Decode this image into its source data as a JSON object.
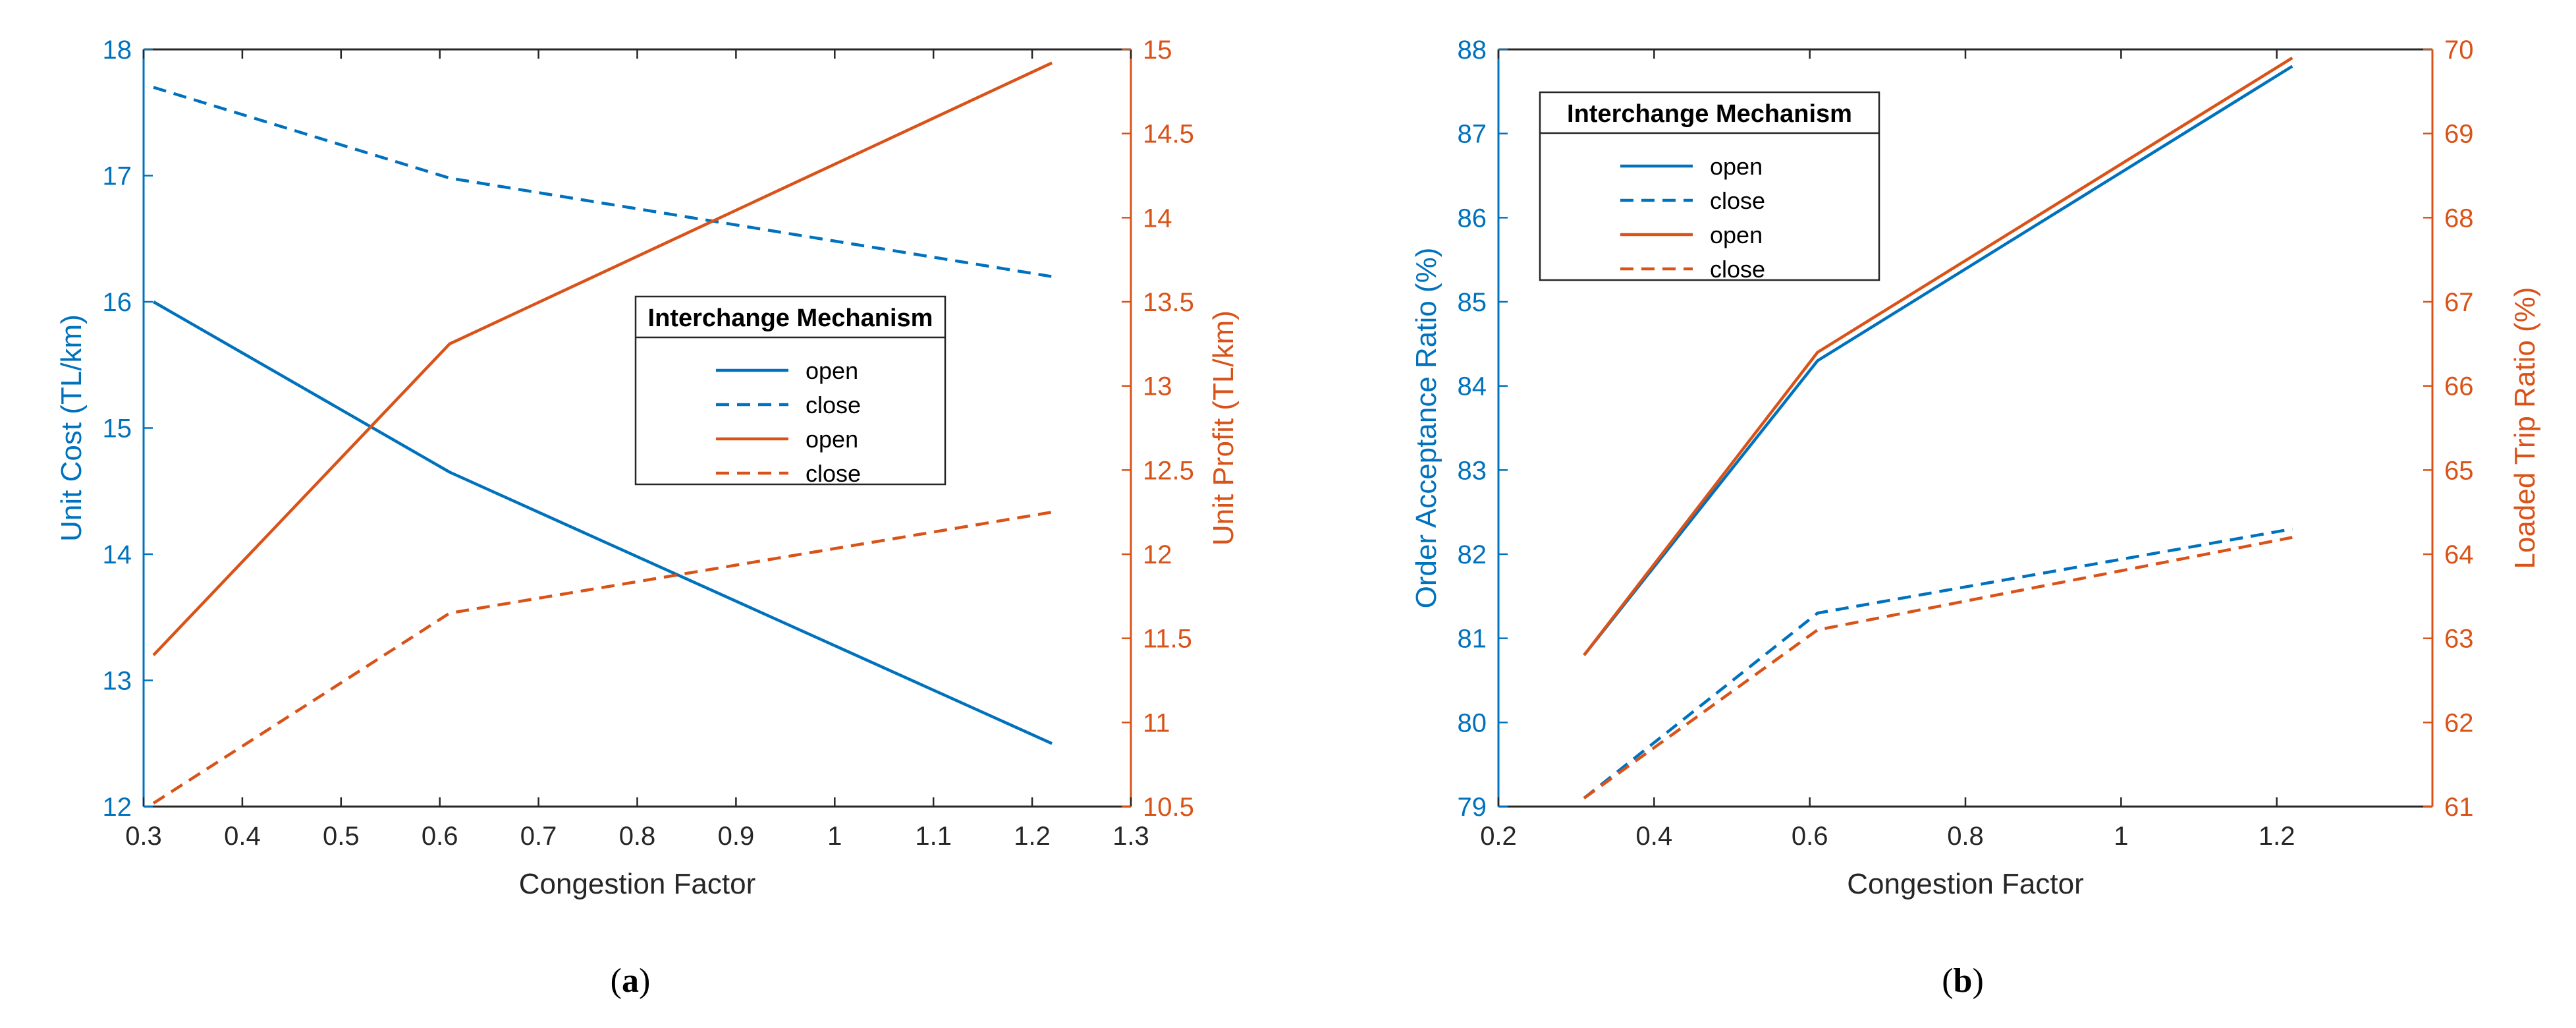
{
  "colors": {
    "left": "#0072BD",
    "right": "#D95319",
    "axis": "#262626",
    "legend_border": "#262626"
  },
  "chart_data": [
    {
      "id": "a",
      "caption_letter": "a",
      "type": "line",
      "xlabel": "Congestion Factor",
      "ylabel_left": "Unit Cost (TL/km)",
      "ylabel_right": "Unit Profit (TL/km)",
      "xlim": [
        0.3,
        1.3
      ],
      "xticks": [
        0.3,
        0.4,
        0.5,
        0.6,
        0.7,
        0.8,
        0.9,
        1,
        1.1,
        1.2,
        1.3
      ],
      "xtick_labels": [
        "0.3",
        "0.4",
        "0.5",
        "0.6",
        "0.7",
        "0.8",
        "0.9",
        "1",
        "1.1",
        "1.2",
        "1.3"
      ],
      "ylim_left": [
        12,
        18
      ],
      "yticks_left": [
        12,
        13,
        14,
        15,
        16,
        17,
        18
      ],
      "ytick_labels_left": [
        "12",
        "13",
        "14",
        "15",
        "16",
        "17",
        "18"
      ],
      "ylim_right": [
        10.5,
        15
      ],
      "yticks_right": [
        10.5,
        11,
        11.5,
        12,
        12.5,
        13,
        13.5,
        14,
        14.5,
        15
      ],
      "ytick_labels_right": [
        "10.5",
        "11",
        "11.5",
        "12",
        "12.5",
        "13",
        "13.5",
        "14",
        "14.5",
        "15"
      ],
      "legend_title": "Interchange Mechanism",
      "legend_position": "center-right",
      "series": [
        {
          "name": "open",
          "axis": "left",
          "style": "solid",
          "x": [
            0.31,
            0.61,
            1.22
          ],
          "y": [
            16.0,
            14.65,
            12.5
          ]
        },
        {
          "name": "close",
          "axis": "left",
          "style": "dashed",
          "x": [
            0.31,
            0.61,
            1.22
          ],
          "y": [
            17.7,
            16.98,
            16.2
          ]
        },
        {
          "name": "open",
          "axis": "right",
          "style": "solid",
          "x": [
            0.31,
            0.61,
            1.22
          ],
          "y": [
            11.4,
            13.25,
            14.92
          ]
        },
        {
          "name": "close",
          "axis": "right",
          "style": "dashed",
          "x": [
            0.31,
            0.61,
            1.22
          ],
          "y": [
            10.52,
            11.65,
            12.25
          ]
        }
      ]
    },
    {
      "id": "b",
      "caption_letter": "b",
      "type": "line",
      "xlabel": "Congestion Factor",
      "ylabel_left": "Order Acceptance Ratio (%)",
      "ylabel_right": "Loaded Trip Ratio (%)",
      "xlim": [
        0.2,
        1.4
      ],
      "xticks": [
        0.2,
        0.4,
        0.6,
        0.8,
        1,
        1.2
      ],
      "xtick_labels": [
        "0.2",
        "0.4",
        "0.6",
        "0.8",
        "1",
        "1.2"
      ],
      "ylim_left": [
        79,
        88
      ],
      "yticks_left": [
        79,
        80,
        81,
        82,
        83,
        84,
        85,
        86,
        87,
        88
      ],
      "ytick_labels_left": [
        "79",
        "80",
        "81",
        "82",
        "83",
        "84",
        "85",
        "86",
        "87",
        "88"
      ],
      "ylim_right": [
        61,
        70
      ],
      "yticks_right": [
        61,
        62,
        63,
        64,
        65,
        66,
        67,
        68,
        69,
        70
      ],
      "ytick_labels_right": [
        "61",
        "62",
        "63",
        "64",
        "65",
        "66",
        "67",
        "68",
        "69",
        "70"
      ],
      "legend_title": "Interchange Mechanism",
      "legend_position": "top-left",
      "series": [
        {
          "name": "open",
          "axis": "left",
          "style": "solid",
          "x": [
            0.31,
            0.61,
            1.22
          ],
          "y": [
            80.8,
            84.3,
            87.8
          ]
        },
        {
          "name": "close",
          "axis": "left",
          "style": "dashed",
          "x": [
            0.31,
            0.61,
            1.22
          ],
          "y": [
            79.1,
            81.3,
            82.3
          ]
        },
        {
          "name": "open",
          "axis": "right",
          "style": "solid",
          "x": [
            0.31,
            0.61,
            1.22
          ],
          "y": [
            62.8,
            66.4,
            69.9
          ]
        },
        {
          "name": "close",
          "axis": "right",
          "style": "dashed",
          "x": [
            0.31,
            0.61,
            1.22
          ],
          "y": [
            61.1,
            63.1,
            64.2
          ]
        }
      ]
    }
  ]
}
